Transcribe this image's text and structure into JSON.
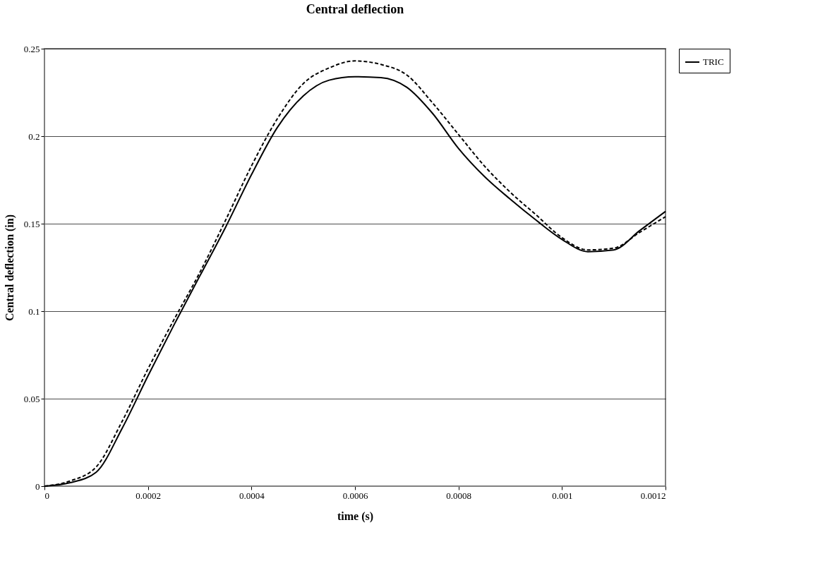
{
  "chart_data": {
    "type": "line",
    "title": "Central deflection",
    "xlabel": "time (s)",
    "ylabel": "Central deflection (in)",
    "xlim": [
      0,
      0.0012
    ],
    "xticks": [
      0,
      0.0002,
      0.0004,
      0.0006,
      0.0008,
      0.001,
      0.0012
    ],
    "ylim": [
      0,
      0.25
    ],
    "yticks": [
      0,
      0.05,
      0.1,
      0.15,
      0.2,
      0.25
    ],
    "grid": "y",
    "legend": "right",
    "marker": "none",
    "x": [
      0,
      5e-05,
      0.0001,
      0.00015,
      0.0002,
      0.00025,
      0.0003,
      0.00035,
      0.0004,
      0.00045,
      0.0005,
      0.00055,
      0.0006,
      0.00065,
      0.0007,
      0.00075,
      0.0008,
      0.00085,
      0.0009,
      0.00095,
      0.001,
      0.00105,
      0.0011,
      0.00115,
      0.0012
    ],
    "series": [
      {
        "name": "TRIC",
        "color": "#000000",
        "line_style": "solid",
        "values": [
          0,
          0.002,
          0.008,
          0.033,
          0.063,
          0.092,
          0.12,
          0.148,
          0.178,
          0.205,
          0.223,
          0.232,
          0.234,
          0.2335,
          0.228,
          0.213,
          0.193,
          0.177,
          0.164,
          0.152,
          0.141,
          0.134,
          0.135,
          0.146,
          0.157
        ]
      },
      {
        "color": "#000000",
        "line_style": "dashed",
        "values": [
          0,
          0.003,
          0.011,
          0.037,
          0.067,
          0.095,
          0.122,
          0.152,
          0.183,
          0.21,
          0.23,
          0.239,
          0.243,
          0.241,
          0.235,
          0.219,
          0.201,
          0.183,
          0.168,
          0.155,
          0.142,
          0.135,
          0.136,
          0.145,
          0.154
        ]
      }
    ]
  }
}
